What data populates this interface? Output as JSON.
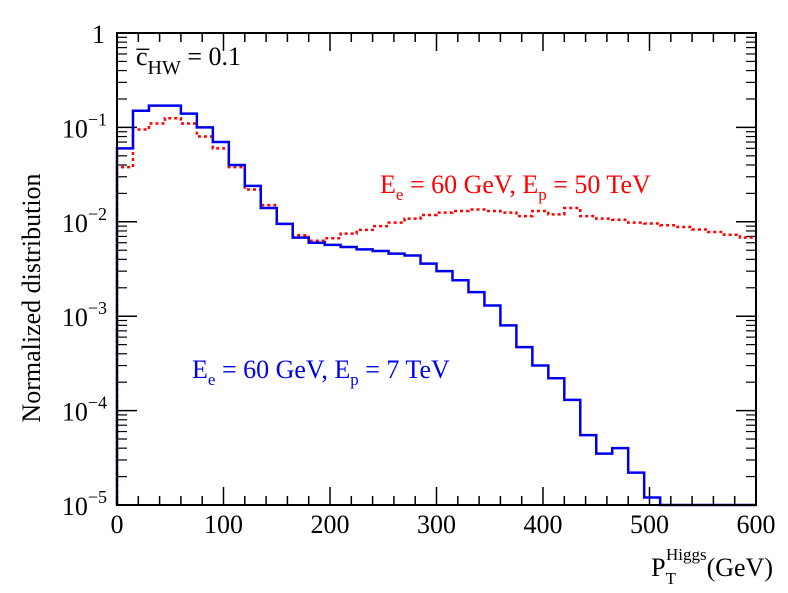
{
  "chart_data": {
    "type": "line",
    "style": "step-histogram",
    "xlabel": {
      "base": "P",
      "sub": "T",
      "sup": "Higgs",
      "unit": "(GeV)"
    },
    "ylabel": "Normalized distribution",
    "xlim": [
      0,
      600
    ],
    "ylim": [
      1e-05,
      1
    ],
    "yscale": "log",
    "x_ticks": [
      {
        "value": 0,
        "label": "0"
      },
      {
        "value": 100,
        "label": "100"
      },
      {
        "value": 200,
        "label": "200"
      },
      {
        "value": 300,
        "label": "300"
      },
      {
        "value": 400,
        "label": "400"
      },
      {
        "value": 500,
        "label": "500"
      },
      {
        "value": 600,
        "label": "600"
      }
    ],
    "y_ticks": [
      {
        "value": 1,
        "base": "1",
        "exp": ""
      },
      {
        "value": 0.1,
        "base": "10",
        "exp": "−1"
      },
      {
        "value": 0.01,
        "base": "10",
        "exp": "−2"
      },
      {
        "value": 0.001,
        "base": "10",
        "exp": "−3"
      },
      {
        "value": 0.0001,
        "base": "10",
        "exp": "−4"
      },
      {
        "value": 1e-05,
        "base": "10",
        "exp": "−5"
      }
    ],
    "annotation": {
      "symbol": "c̅",
      "sub": "HW",
      "text": " = 0.1"
    },
    "bin_edges": [
      0,
      15,
      30,
      45,
      60,
      75,
      90,
      105,
      120,
      135,
      150,
      165,
      180,
      195,
      210,
      225,
      240,
      255,
      270,
      285,
      300,
      315,
      330,
      345,
      360,
      375,
      390,
      405,
      420,
      435,
      450,
      465,
      480,
      495,
      510,
      525,
      540,
      555,
      570,
      585,
      600
    ],
    "series": [
      {
        "name": "Ee = 60 GeV, Ep = 50 TeV",
        "color": "#ff0000",
        "dash": "dotted",
        "label_parts": {
          "e1": "E",
          "s1": "e",
          "mid": " = 60 GeV, ",
          "e2": "E",
          "s2": "p",
          "end": " = 50 TeV"
        },
        "values": [
          0.038,
          0.095,
          0.11,
          0.125,
          0.11,
          0.08,
          0.06,
          0.038,
          0.022,
          0.015,
          0.0095,
          0.0072,
          0.0063,
          0.0067,
          0.0075,
          0.0082,
          0.009,
          0.0098,
          0.0108,
          0.0118,
          0.0125,
          0.013,
          0.0135,
          0.013,
          0.0125,
          0.0115,
          0.013,
          0.012,
          0.014,
          0.0115,
          0.0108,
          0.0105,
          0.0098,
          0.0096,
          0.0092,
          0.0088,
          0.0083,
          0.0078,
          0.0073,
          0.0068
        ]
      },
      {
        "name": "Ee = 60 GeV, Ep = 7 TeV",
        "color": "#0000ee",
        "dash": "solid",
        "label_parts": {
          "e1": "E",
          "s1": "e",
          "mid": " = 60 GeV, ",
          "e2": "E",
          "s2": "p",
          "end": " =  7 TeV"
        },
        "values": [
          0.06,
          0.15,
          0.17,
          0.17,
          0.14,
          0.1,
          0.07,
          0.04,
          0.024,
          0.014,
          0.0095,
          0.0068,
          0.006,
          0.0057,
          0.0054,
          0.0051,
          0.0049,
          0.0046,
          0.0044,
          0.0036,
          0.003,
          0.0024,
          0.0018,
          0.0013,
          0.0008,
          0.00047,
          0.0003,
          0.00022,
          0.00013,
          5.5e-05,
          3.5e-05,
          4e-05,
          2.2e-05,
          1.2e-05,
          1e-05,
          1e-05,
          1e-05,
          1e-05,
          1e-05,
          1e-05
        ]
      }
    ]
  }
}
